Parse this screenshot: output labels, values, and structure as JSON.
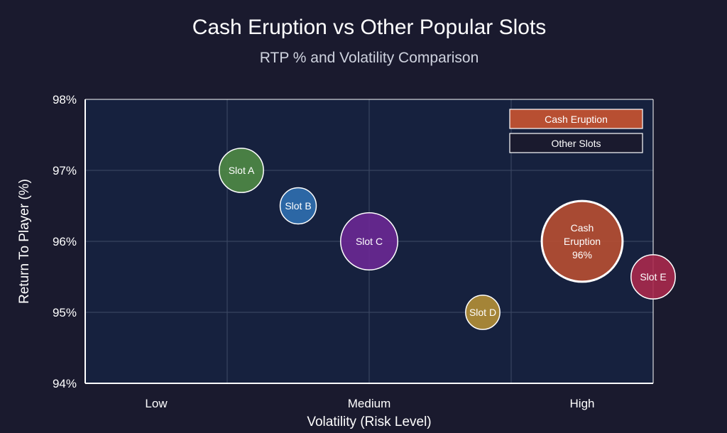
{
  "chart_data": {
    "type": "scatter",
    "title": "Cash Eruption vs Other Popular Slots",
    "subtitle": "RTP % and Volatility Comparison",
    "xlabel": "Volatility (Risk Level)",
    "ylabel": "Return To Player (%)",
    "x_tick_labels": [
      {
        "value": 1,
        "label": "Low"
      },
      {
        "value": 4,
        "label": "Medium"
      },
      {
        "value": 7,
        "label": "High"
      }
    ],
    "xlim": [
      0,
      8
    ],
    "ylim": [
      94,
      98
    ],
    "y_ticks": [
      94,
      95,
      96,
      97,
      98
    ],
    "y_tick_format": "%",
    "grid": true,
    "legend": {
      "placement": "top-right",
      "items": [
        {
          "label": "Cash Eruption",
          "color": "#b84f32"
        },
        {
          "label": "Other Slots",
          "color": "#1a1a2e"
        }
      ]
    },
    "points": [
      {
        "name": "Slot A",
        "x": 2.2,
        "y": 97.0,
        "size": 3,
        "color": "#4f8a45",
        "label_lines": [
          "Slot A"
        ]
      },
      {
        "name": "Slot B",
        "x": 3.0,
        "y": 96.5,
        "size": 2,
        "color": "#2f6fb0",
        "label_lines": [
          "Slot B"
        ]
      },
      {
        "name": "Slot C",
        "x": 4.0,
        "y": 96.0,
        "size": 5,
        "color": "#6a2893",
        "label_lines": [
          "Slot C"
        ]
      },
      {
        "name": "Slot D",
        "x": 5.6,
        "y": 95.0,
        "size": 1.8,
        "color": "#b48f36",
        "label_lines": [
          "Slot D"
        ]
      },
      {
        "name": "Cash Eruption",
        "x": 7.0,
        "y": 96.0,
        "size": 10,
        "color": "#b84f32",
        "highlight": true,
        "label_lines": [
          "Cash",
          "Eruption",
          "96%"
        ]
      },
      {
        "name": "Slot E",
        "x": 8.0,
        "y": 95.5,
        "size": 3,
        "color": "#a8294d",
        "label_lines": [
          "Slot E"
        ]
      }
    ]
  }
}
